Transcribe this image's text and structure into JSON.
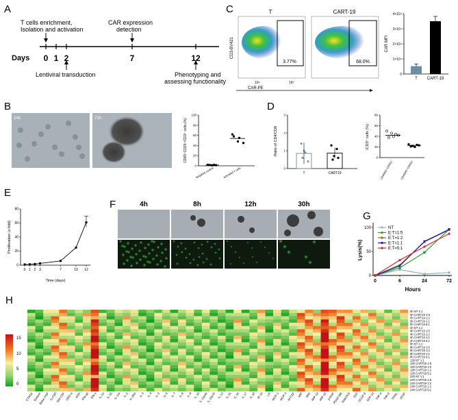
{
  "panels": {
    "A": "A",
    "B": "B",
    "C": "C",
    "D": "D",
    "E": "E",
    "F": "F",
    "G": "G",
    "H": "H"
  },
  "panel_a": {
    "days_label": "Days",
    "day_ticks": [
      "0",
      "1",
      "2",
      "7",
      "12"
    ],
    "step_enrich": [
      "T cells enrichment,",
      "Isolation and activation"
    ],
    "step_car": [
      "CAR expression",
      "detection"
    ],
    "step_lenti": "Lentiviral transduction",
    "step_pheno": [
      "Phenotyping and",
      "assessing functionality"
    ]
  },
  "panel_c": {
    "flow_left_title": "T",
    "flow_right_title": "CART-19",
    "flow_left_pct": "3.77%",
    "flow_right_pct": "68.0%",
    "y_axis": "CD3-BV421",
    "x_axis": "CAR-PE",
    "bar_ylabel": "CAR MFI",
    "bar_ticks": [
      "0",
      "1×10⁴",
      "2×10⁴",
      "3×10⁴",
      "4×10⁴"
    ],
    "bar_categories": [
      "T",
      "CART-19"
    ],
    "decades": [
      "10⁴",
      "10⁵"
    ]
  },
  "panel_b": {
    "img_left_label": "24h",
    "img_right_label": "72h",
    "ylabel": "CD69⁺CD25⁺/CD3⁺ cells (%)",
    "yticks": [
      "0",
      "20",
      "40",
      "60",
      "80",
      "100"
    ],
    "categories": [
      "Negative control",
      "activated T cells"
    ]
  },
  "panel_d": {
    "left_ylabel": "Ratio of CD4/CD8",
    "left_categories": [
      "T",
      "CART19"
    ],
    "left_yticks": [
      "0",
      "1",
      "2",
      "3"
    ],
    "right_ylabel": "/CD3⁺ cells (%)",
    "right_categories": [
      "CD45RA⁺CD62L⁺",
      "CD45RO⁺CD62L⁺"
    ],
    "right_yticks": [
      "0",
      "20",
      "40",
      "60",
      "80"
    ]
  },
  "panel_e": {
    "ylabel": "Proliferation (x-fold)",
    "xlabel": "Time (days)",
    "yticks": [
      "0",
      "20",
      "40",
      "60",
      "80"
    ],
    "xticks": [
      "0",
      "1",
      "2",
      "3",
      "7",
      "10",
      "12"
    ]
  },
  "panel_f": {
    "timepoints": [
      "4h",
      "8h",
      "12h",
      "30h"
    ]
  },
  "panel_g": {
    "ylabel": "Lysis(%)",
    "xlabel": "Hours",
    "yticks": [
      "0",
      "50",
      "100"
    ],
    "xticks": [
      "0",
      "6",
      "24",
      "72"
    ],
    "legend": [
      "NT",
      "E:T=1:5",
      "E:T=1:2",
      "E:T=1:1",
      "E:T=5:1"
    ],
    "colors": [
      "#8fb4c4",
      "#2e9c2e",
      "#8b6d1d",
      "#1a1acc",
      "#e02020"
    ]
  },
  "panel_h": {
    "row_labels": [
      "0h NT 1:1",
      "0h CART19 1:5",
      "0h CART19 1:2",
      "0h CART19 1:1",
      "0h CART19 5:1",
      "4h NT 1:1",
      "4h CART19 1:5",
      "4h CART19 1:2",
      "4h CART19 1:1",
      "4h CART19 5:1",
      "8h NT 1:1",
      "8h CART19 1:5",
      "8h CART19 1:2",
      "8h CART19 1:1",
      "8h CART19 5:1",
      "12h NT 1:1",
      "12h CART19 1:5",
      "12h CART19 1:2",
      "12h CART19 1:1",
      "12h CART19 5:1",
      "24h NT 1:1",
      "24h CART19 1:5",
      "24h CART19 1:2",
      "24h CART19 1:1",
      "24h CART19 5:1"
    ],
    "col_labels": [
      "CTACK",
      "Eotaxin",
      "Basic FGF",
      "G-CSF",
      "GM-CSF",
      "GRO-a",
      "HGF",
      "IFN-a2",
      "IFN-γ",
      "IL-1α",
      "IL-1β",
      "IL-1ra",
      "IL-2",
      "IL-2Rα",
      "IL-3",
      "IL-4",
      "IL-5",
      "IL-6",
      "IL-7",
      "IL-8",
      "IL-9",
      "IL-10",
      "IL-12p40",
      "IL-12p70",
      "IL-13",
      "IL-15",
      "IL-16",
      "IL-17",
      "IL-18",
      "IP-10",
      "LIF",
      "MCP-1",
      "MCP-3",
      "M-CSF",
      "MIF",
      "MIG",
      "MIP-1α",
      "MIP-1β",
      "β-NGF",
      "PDGF-BB",
      "RANTES",
      "SCF",
      "SCGF-β",
      "SDF-1α",
      "TNF-α",
      "TNF-β",
      "TRAIL",
      "VEGF"
    ],
    "scale_ticks": [
      "15",
      "10",
      "5",
      "0"
    ]
  }
}
